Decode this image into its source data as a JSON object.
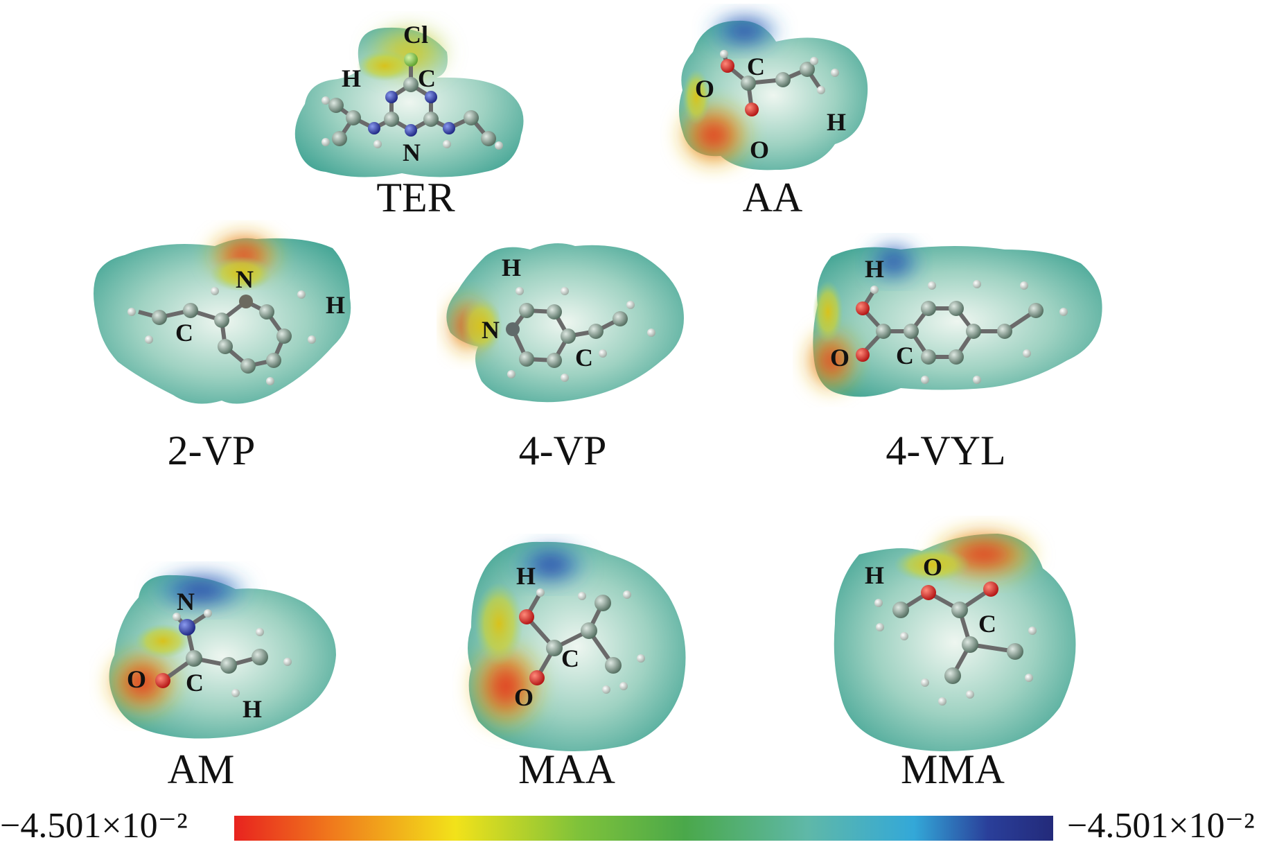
{
  "colors": {
    "scale": [
      "#e8231f",
      "#f07a1c",
      "#f2d41a",
      "#7fc23a",
      "#4aa84a",
      "#5fb8a8",
      "#33a8d8",
      "#2a3f9a",
      "#232a7a"
    ],
    "surface_base": "#5bb8a8",
    "negative_region": "#e2321f",
    "positive_region": "#2a3aa0",
    "carbon_atom": "#6f8a7c",
    "hydrogen_atom": "#eaeaea",
    "oxygen_atom": "#d81e1e",
    "nitrogen_atom": "#2d3aa8",
    "chlorine_atom": "#8ad04a"
  },
  "molecules": [
    {
      "id": "TER",
      "name": "TER",
      "atom_labels": [
        "Cl",
        "H",
        "C",
        "N"
      ]
    },
    {
      "id": "AA",
      "name": "AA",
      "atom_labels": [
        "C",
        "O",
        "O",
        "H"
      ]
    },
    {
      "id": "2VP",
      "name": "2-VP",
      "atom_labels": [
        "N",
        "H",
        "C"
      ]
    },
    {
      "id": "4VP",
      "name": "4-VP",
      "atom_labels": [
        "H",
        "N",
        "C"
      ]
    },
    {
      "id": "4VYL",
      "name": "4-VYL",
      "atom_labels": [
        "H",
        "O",
        "C"
      ]
    },
    {
      "id": "AM",
      "name": "AM",
      "atom_labels": [
        "N",
        "O",
        "C",
        "H"
      ]
    },
    {
      "id": "MAA",
      "name": "MAA",
      "atom_labels": [
        "H",
        "C",
        "O"
      ]
    },
    {
      "id": "MMA",
      "name": "MMA",
      "atom_labels": [
        "H",
        "O",
        "C"
      ]
    }
  ],
  "color_scale": {
    "min_label": "−4.501×10⁻²",
    "max_label": "−4.501×10⁻²"
  }
}
